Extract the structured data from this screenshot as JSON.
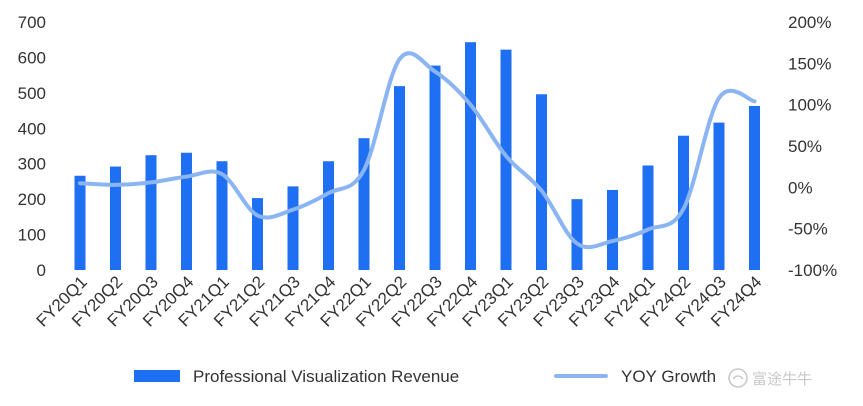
{
  "chart_data": {
    "type": "bar",
    "categories": [
      "FY20Q1",
      "FY20Q2",
      "FY20Q3",
      "FY20Q4",
      "FY21Q1",
      "FY21Q2",
      "FY21Q3",
      "FY21Q4",
      "FY22Q1",
      "FY22Q2",
      "FY22Q3",
      "FY22Q4",
      "FY23Q1",
      "FY23Q2",
      "FY23Q3",
      "FY23Q4",
      "FY24Q1",
      "FY24Q2",
      "FY24Q3",
      "FY24Q4"
    ],
    "series": [
      {
        "name": "Professional Visualization Revenue",
        "type": "bar",
        "axis": "left",
        "color": "#1E6FF2",
        "values": [
          266,
          292,
          324,
          331,
          307,
          203,
          236,
          307,
          372,
          519,
          577,
          643,
          622,
          496,
          200,
          226,
          295,
          379,
          416,
          463
        ]
      },
      {
        "name": "YOY Growth",
        "type": "line",
        "axis": "right",
        "color": "#8BB5F2",
        "values": [
          5,
          3,
          6,
          13,
          16,
          -34,
          -27,
          -7,
          21,
          155,
          140,
          100,
          38,
          -4,
          -68,
          -65,
          -51,
          -26,
          108,
          104
        ]
      }
    ],
    "left_axis": {
      "ticks": [
        "0",
        "100",
        "200",
        "300",
        "400",
        "500",
        "600",
        "700"
      ],
      "ylim": [
        0,
        700
      ]
    },
    "right_axis": {
      "ticks": [
        "-100%",
        "-50%",
        "0%",
        "50%",
        "100%",
        "150%",
        "200%"
      ],
      "ylim": [
        -100,
        200
      ]
    },
    "legend_position": "bottom",
    "grid": false
  },
  "watermark": {
    "text": "富途牛牛",
    "icon": "futu-logo-icon"
  }
}
